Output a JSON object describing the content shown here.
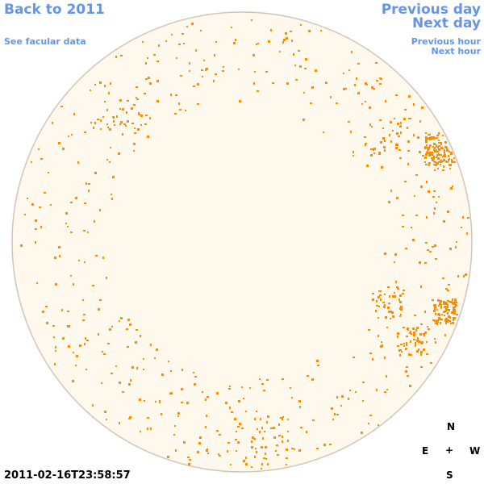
{
  "nav": {
    "back_year": "Back to 2011",
    "facular": "See facular data",
    "prev_day": "Previous day",
    "next_day": "Next day",
    "prev_hour": "Previous hour",
    "next_hour": "Next hour"
  },
  "compass": {
    "n": "N",
    "s": "S",
    "e": "E",
    "w": "W",
    "center": "+"
  },
  "timestamp": "2011-02-16T23:58:57",
  "colors": {
    "link": "#6495ed",
    "disk": "#fff8ec",
    "limb": "#cfc6b6",
    "facula": "#ff8c00"
  }
}
